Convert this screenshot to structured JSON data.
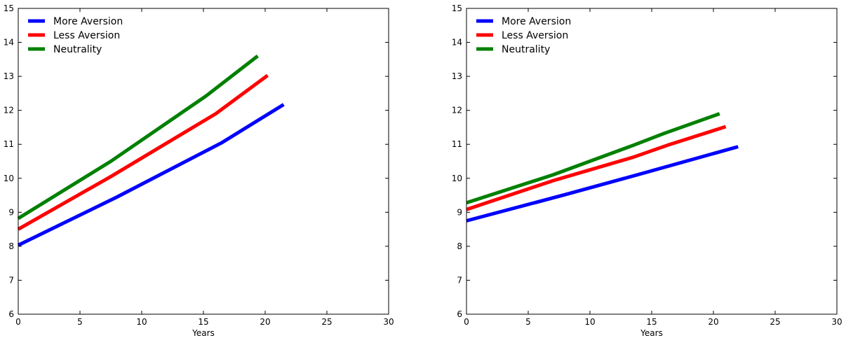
{
  "chart_data": [
    {
      "type": "line",
      "title": "",
      "xlabel": "Years",
      "ylabel": "",
      "xlim": [
        0,
        30
      ],
      "ylim": [
        6,
        15
      ],
      "xticks": [
        0,
        5,
        10,
        15,
        20,
        25,
        30
      ],
      "yticks": [
        6,
        7,
        8,
        9,
        10,
        11,
        12,
        13,
        14,
        15
      ],
      "legend_position": "top-left",
      "series": [
        {
          "name": "More Aversion",
          "color": "#0000ff",
          "x": [
            0,
            8,
            16.5,
            21.5
          ],
          "y": [
            8.03,
            9.45,
            11.05,
            12.17
          ]
        },
        {
          "name": "Less Aversion",
          "color": "#ff0000",
          "x": [
            0,
            7.5,
            16,
            20.2
          ],
          "y": [
            8.5,
            10.05,
            11.9,
            13.03
          ]
        },
        {
          "name": "Neutrality",
          "color": "#008000",
          "x": [
            0,
            7.5,
            15.2,
            19.4
          ],
          "y": [
            8.82,
            10.5,
            12.42,
            13.6
          ]
        }
      ]
    },
    {
      "type": "line",
      "title": "",
      "xlabel": "Years",
      "ylabel": "",
      "xlim": [
        0,
        30
      ],
      "ylim": [
        6,
        15
      ],
      "xticks": [
        0,
        5,
        10,
        15,
        20,
        25,
        30
      ],
      "yticks": [
        6,
        7,
        8,
        9,
        10,
        11,
        12,
        13,
        14,
        15
      ],
      "legend_position": "top-left",
      "series": [
        {
          "name": "More Aversion",
          "color": "#0000ff",
          "x": [
            0,
            8,
            14,
            22
          ],
          "y": [
            8.75,
            9.52,
            10.12,
            10.93
          ]
        },
        {
          "name": "Less Aversion",
          "color": "#ff0000",
          "x": [
            0,
            7,
            13.5,
            16.5,
            21
          ],
          "y": [
            9.08,
            9.93,
            10.62,
            11.0,
            11.52
          ]
        },
        {
          "name": "Neutrality",
          "color": "#008000",
          "x": [
            0,
            7,
            13.5,
            16,
            20.5
          ],
          "y": [
            9.28,
            10.1,
            10.97,
            11.32,
            11.9
          ]
        }
      ]
    }
  ]
}
